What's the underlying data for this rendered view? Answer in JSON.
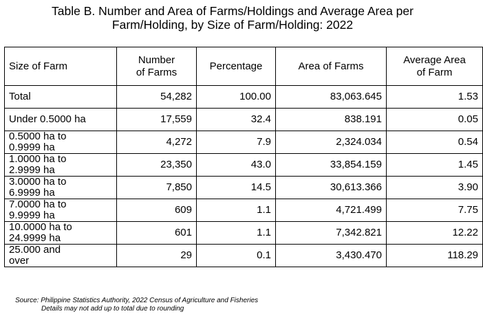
{
  "title": {
    "line1": "Table B. Number and Area of Farms/Holdings and Average Area per",
    "line2": "Farm/Holding, by Size of Farm/Holding: 2022"
  },
  "table": {
    "headers": {
      "size": "Size of Farm",
      "number_l1": "Number",
      "number_l2": "of Farms",
      "percentage": "Percentage",
      "area": "Area of Farms",
      "avg_l1": "Average Area",
      "avg_l2": "of Farm"
    },
    "rows": [
      {
        "size_l1": "Total",
        "size_l2": "",
        "number": "54,282",
        "percentage": "100.00",
        "area": "83,063.645",
        "avg": "1.53"
      },
      {
        "size_l1": "Under 0.5000 ha",
        "size_l2": "",
        "number": "17,559",
        "percentage": "32.4",
        "area": "838.191",
        "avg": "0.05"
      },
      {
        "size_l1": "0.5000 ha to",
        "size_l2": "0.9999 ha",
        "number": "4,272",
        "percentage": "7.9",
        "area": "2,324.034",
        "avg": "0.54"
      },
      {
        "size_l1": "1.0000 ha to",
        "size_l2": "2.9999 ha",
        "number": "23,350",
        "percentage": "43.0",
        "area": "33,854.159",
        "avg": "1.45"
      },
      {
        "size_l1": "3.0000 ha to",
        "size_l2": "6.9999 ha",
        "number": "7,850",
        "percentage": "14.5",
        "area": "30,613.366",
        "avg": "3.90"
      },
      {
        "size_l1": "7.0000 ha to",
        "size_l2": "9.9999 ha",
        "number": "609",
        "percentage": "1.1",
        "area": "4,721.499",
        "avg": "7.75"
      },
      {
        "size_l1": "10.0000 ha to",
        "size_l2": "24.9999 ha",
        "number": "601",
        "percentage": "1.1",
        "area": "7,342.821",
        "avg": "12.22"
      },
      {
        "size_l1": "25.000 and",
        "size_l2": "over",
        "number": "29",
        "percentage": "0.1",
        "area": "3,430.470",
        "avg": "118.29"
      }
    ]
  },
  "source": {
    "line1": "Source: Philippine Statistics Authority, 2022 Census of Agriculture and Fisheries",
    "line2": "Details may not add up to total due to rounding"
  }
}
